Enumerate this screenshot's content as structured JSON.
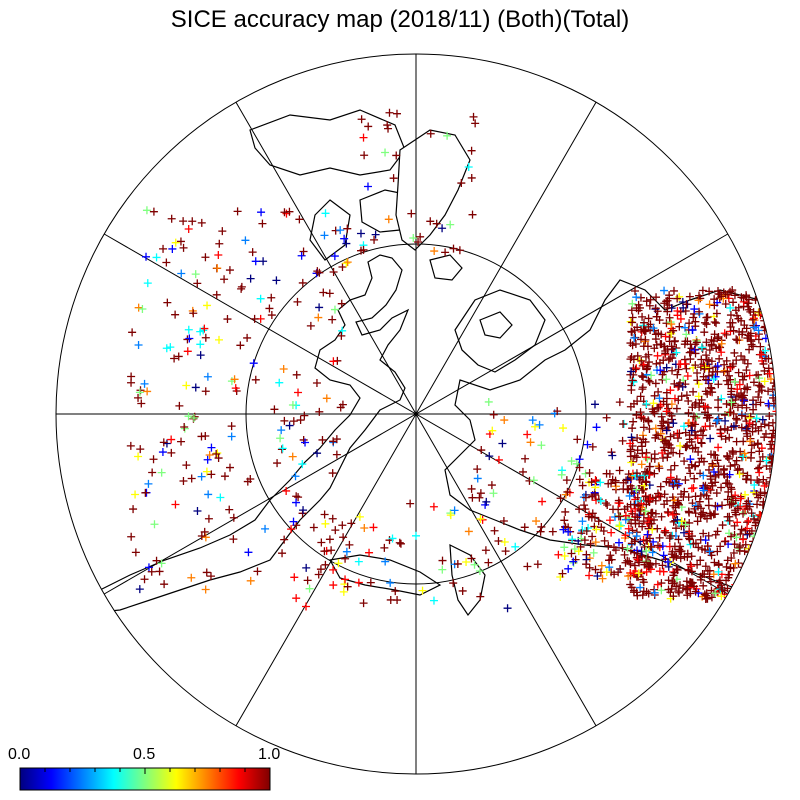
{
  "title": "SICE accuracy map (2018/11) (Both)(Total)",
  "projection": "north-polar-stereographic",
  "graticule": {
    "meridian_spacing_deg": 30,
    "parallels_deg": [
      60
    ]
  },
  "colorbar": {
    "min_label": "0.0",
    "mid_label": "0.5",
    "max_label": "1.0",
    "range": [
      0.0,
      1.0
    ],
    "colormap": "jet",
    "colors": [
      "#00007f",
      "#0000ff",
      "#007fff",
      "#00ffff",
      "#7fff7f",
      "#ffff00",
      "#ff7f00",
      "#ff0000",
      "#7f0000"
    ]
  },
  "marker_symbol": "+",
  "land_color": "#ffffff",
  "coast_color": "#000000"
}
